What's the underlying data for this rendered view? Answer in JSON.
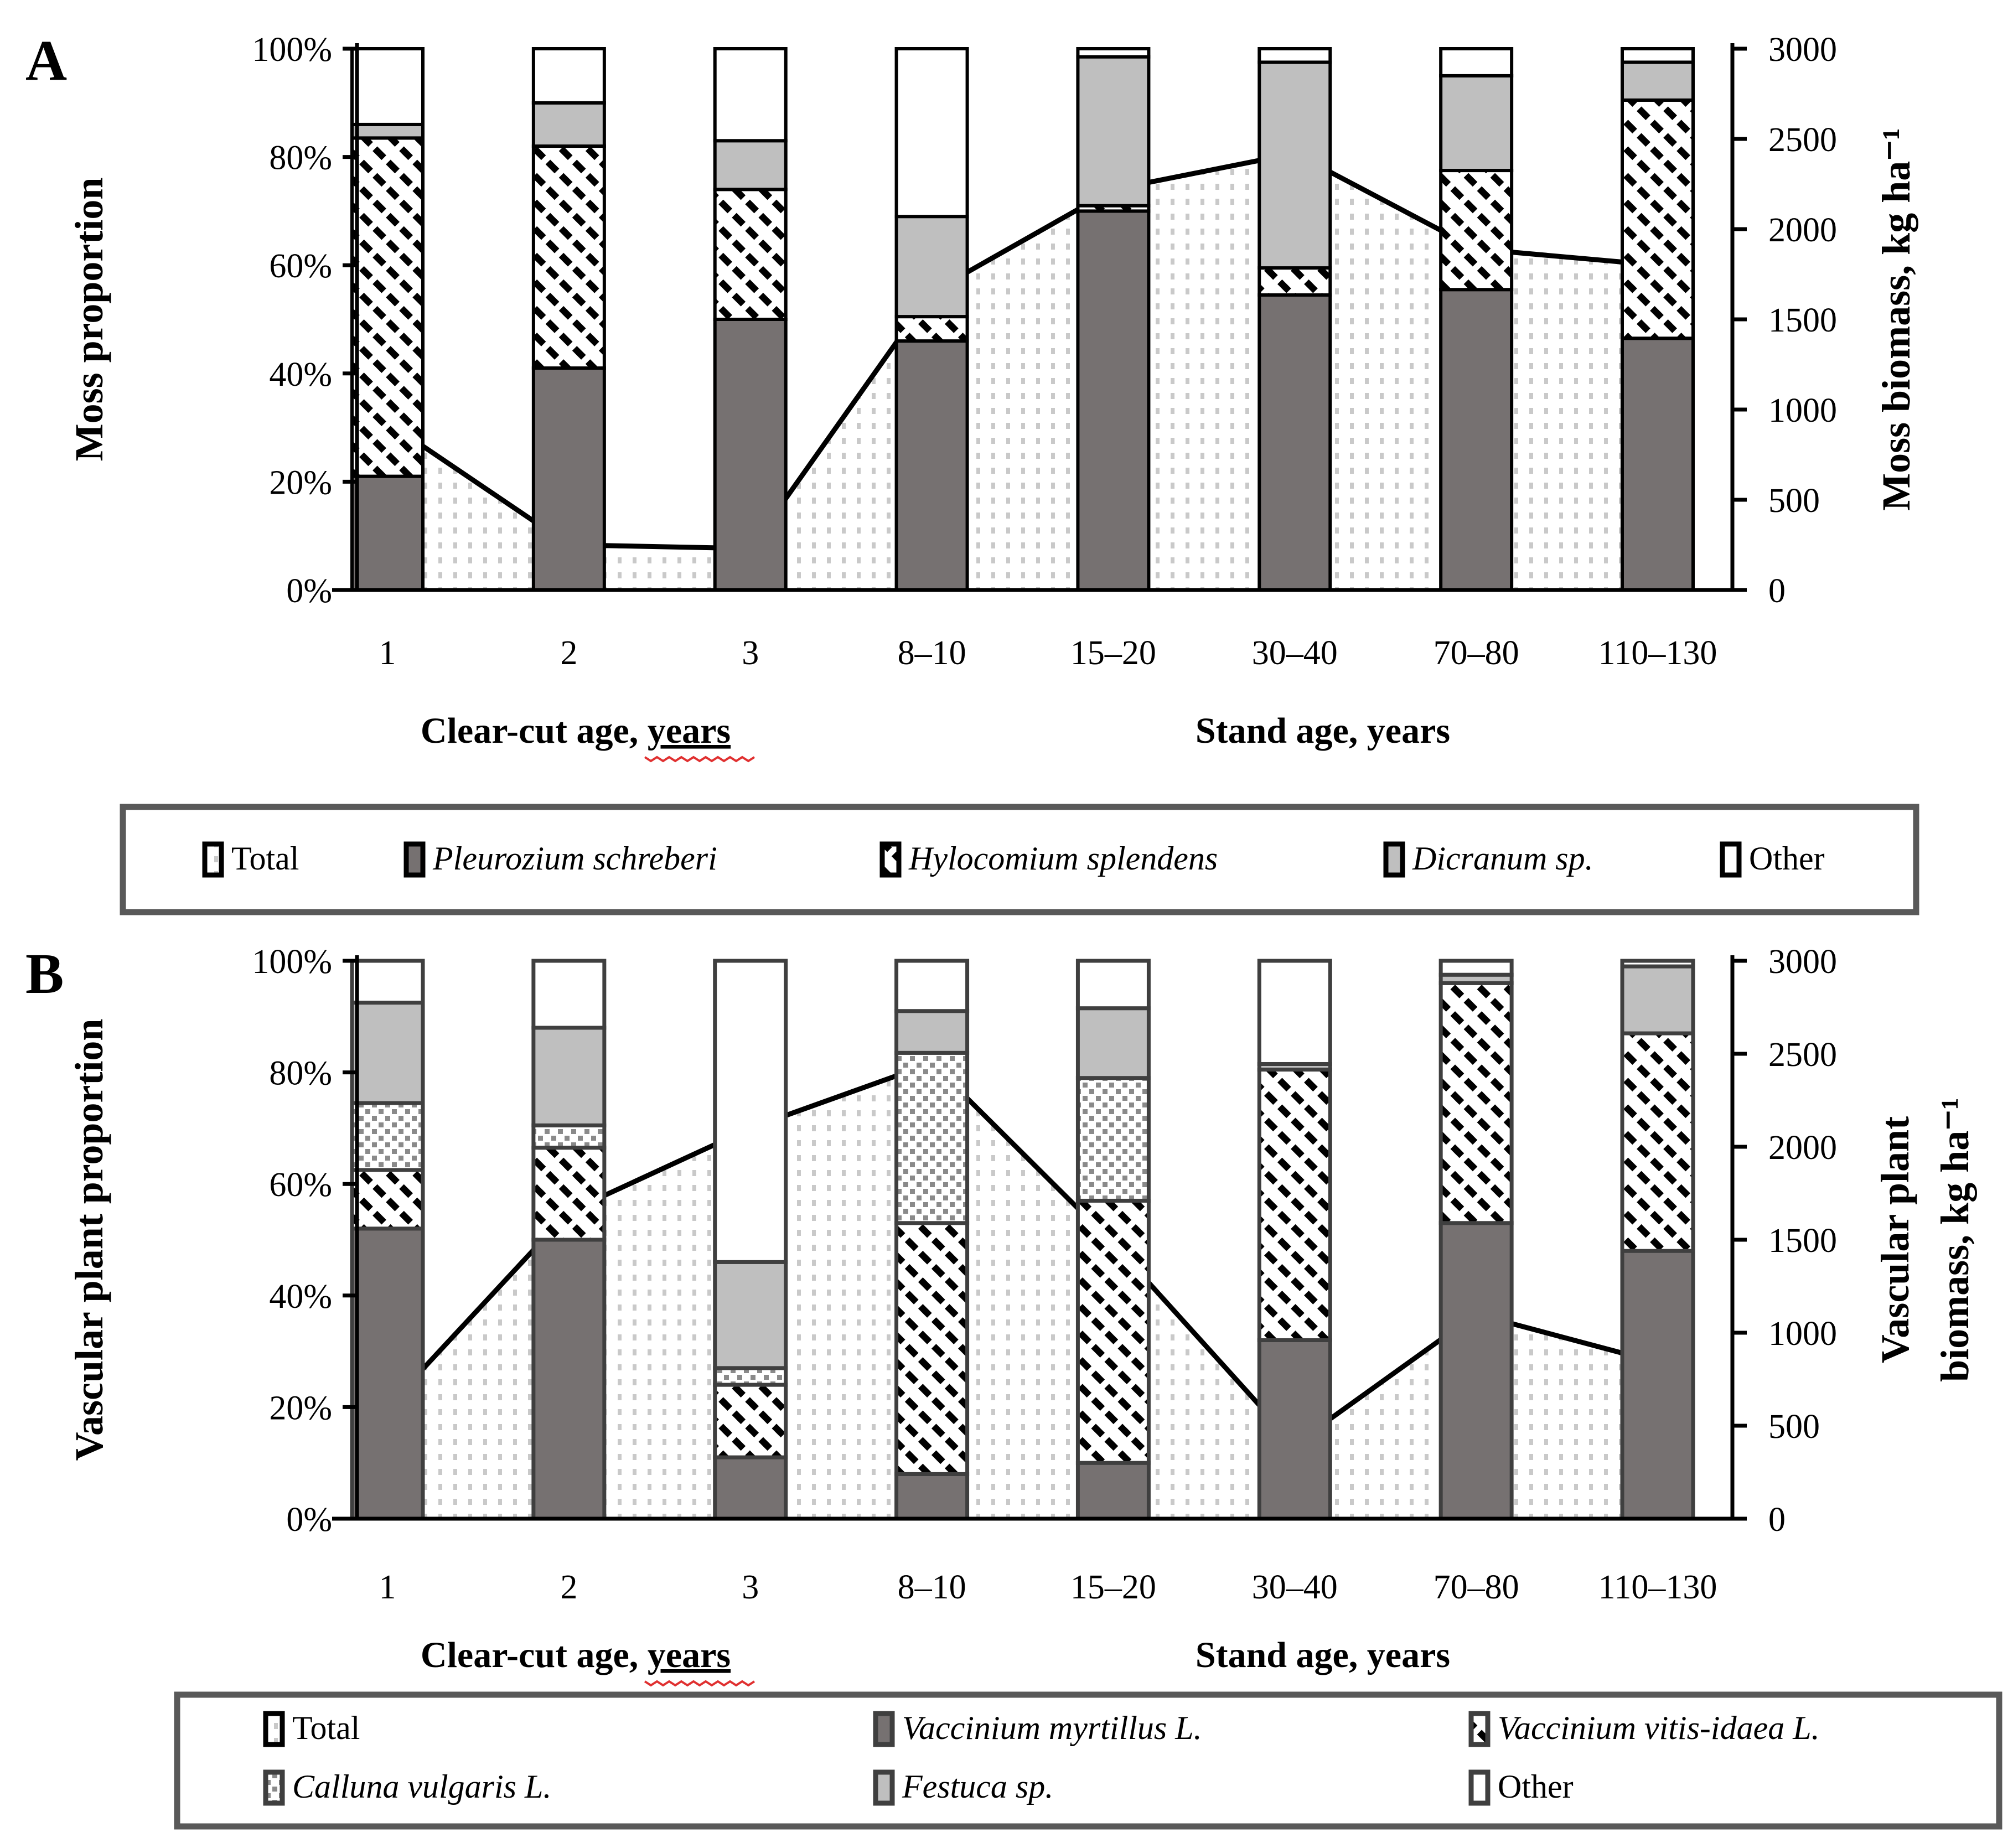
{
  "panel_a_letter": "A",
  "panel_b_letter": "B",
  "colors": {
    "dark_gray_fill": "#767171",
    "light_gray_fill": "#bfbfbf",
    "white_fill": "#ffffff",
    "area_dot_color": "#c9c9c9",
    "calluna_dot_color": "#8a8a8a",
    "bar_border_a": "#000000",
    "bar_border_b": "#3f3f3f",
    "legend_border": "#595959",
    "line_color": "#000000",
    "squiggle_color": "#e03030"
  },
  "chart_data": [
    {
      "panel_label": "A",
      "type": "bar",
      "subtype": "stacked-100%-bars with Total area series on secondary axis",
      "title": "",
      "categories": [
        "1",
        "2",
        "3",
        "8–10",
        "15–20",
        "30–40",
        "70–80",
        "110–130"
      ],
      "x_group_titles": [
        {
          "text": "Clear-cut age, ",
          "underlined_word": "years",
          "has_red_squiggle": true
        },
        {
          "text": "Stand age, years",
          "underlined_word": "",
          "has_red_squiggle": false
        }
      ],
      "y_left": {
        "title": "Moss proportion",
        "tick_labels": [
          "0%",
          "20%",
          "40%",
          "60%",
          "80%",
          "100%"
        ],
        "range": [
          0,
          100
        ],
        "grid": false
      },
      "y_right": {
        "title_lines": [
          "Moss biomass, kg ha⁻¹"
        ],
        "tick_labels": [
          "0",
          "500",
          "1000",
          "1500",
          "2000",
          "2500",
          "3000"
        ],
        "range": [
          0,
          3000
        ]
      },
      "area_series": {
        "name": "Total",
        "fill": "area-dots",
        "values_kg_ha": [
          930,
          250,
          230,
          1650,
          2220,
          2420,
          1890,
          1800
        ]
      },
      "bar_series": [
        {
          "name": "Pleurozium schreberi",
          "italic": true,
          "fill": "darkgray",
          "values_pct": [
            21,
            41,
            50,
            46,
            70,
            54.5,
            55.5,
            46.5
          ]
        },
        {
          "name": "Hylocomium splendens",
          "italic": true,
          "fill": "hatch",
          "values_pct": [
            62.5,
            41,
            24,
            4.5,
            1,
            5,
            22,
            44
          ]
        },
        {
          "name": "Dicranum sp.",
          "italic": true,
          "fill": "lightgray",
          "values_pct": [
            2.5,
            8,
            9,
            18.5,
            27.5,
            38,
            17.5,
            7
          ]
        },
        {
          "name": "Other",
          "italic": false,
          "fill": "white",
          "values_pct": [
            14,
            10,
            17,
            31,
            1.5,
            2.5,
            5,
            2.5
          ]
        }
      ],
      "legend": {
        "rows": 1,
        "items": [
          {
            "label": "Total",
            "italic": false,
            "fill": "area-dots"
          },
          {
            "label": "Pleurozium schreberi",
            "italic": true,
            "fill": "darkgray"
          },
          {
            "label": "Hylocomium splendens",
            "italic": true,
            "fill": "hatch"
          },
          {
            "label": "Dicranum sp.",
            "italic": true,
            "fill": "lightgray"
          },
          {
            "label": "Other",
            "italic": false,
            "fill": "white"
          }
        ]
      }
    },
    {
      "panel_label": "B",
      "type": "bar",
      "subtype": "stacked-100%-bars with Total area series on secondary axis",
      "title": "",
      "categories": [
        "1",
        "2",
        "3",
        "8–10",
        "15–20",
        "30–40",
        "70–80",
        "110–130"
      ],
      "x_group_titles": [
        {
          "text": "Clear-cut age, ",
          "underlined_word": "years",
          "has_red_squiggle": true
        },
        {
          "text": "Stand age, years",
          "underlined_word": "",
          "has_red_squiggle": false
        }
      ],
      "y_left": {
        "title": "Vascular plant proportion",
        "tick_labels": [
          "0%",
          "20%",
          "40%",
          "60%",
          "80%",
          "100%"
        ],
        "range": [
          0,
          100
        ],
        "grid": false
      },
      "y_right": {
        "title_lines": [
          "Vascular plant",
          "biomass, kg ha⁻¹"
        ],
        "tick_labels": [
          "0",
          "500",
          "1000",
          "1500",
          "2000",
          "2500",
          "3000"
        ],
        "range": [
          0,
          3000
        ]
      },
      "area_series": {
        "name": "Total",
        "fill": "area-dots",
        "values_kg_ha": [
          600,
          1650,
          2100,
          2450,
          1480,
          400,
          1100,
          840
        ]
      },
      "bar_series": [
        {
          "name": "Vaccinium myrtillus L.",
          "italic": true,
          "fill": "darkgray",
          "values_pct": [
            52,
            50,
            11,
            8,
            10,
            32,
            53,
            48
          ]
        },
        {
          "name": "Vaccinium vitis-idaea L.",
          "italic": true,
          "fill": "hatch",
          "values_pct": [
            10.5,
            16.5,
            13,
            45,
            47,
            48.5,
            43,
            39
          ]
        },
        {
          "name": "Calluna vulgaris L.",
          "italic": true,
          "fill": "calluna-dots",
          "values_pct": [
            12,
            4,
            3,
            30.5,
            22,
            0,
            0,
            0
          ]
        },
        {
          "name": "Festuca sp.",
          "italic": true,
          "fill": "lightgray",
          "values_pct": [
            18,
            17.5,
            19,
            7.5,
            12.5,
            1,
            1.5,
            12
          ]
        },
        {
          "name": "Other",
          "italic": false,
          "fill": "white",
          "values_pct": [
            7.5,
            12,
            54,
            9,
            8.5,
            18.5,
            2.5,
            1
          ]
        }
      ],
      "legend": {
        "rows": 2,
        "items": [
          {
            "label": "Total",
            "italic": false,
            "fill": "area-dots"
          },
          {
            "label": "Vaccinium myrtillus L.",
            "italic": true,
            "fill": "darkgray"
          },
          {
            "label": "Vaccinium vitis-idaea L.",
            "italic": true,
            "fill": "hatch"
          },
          {
            "label": "Calluna vulgaris L.",
            "italic": true,
            "fill": "calluna-dots"
          },
          {
            "label": "Festuca sp.",
            "italic": true,
            "fill": "lightgray"
          },
          {
            "label": "Other",
            "italic": false,
            "fill": "white"
          }
        ]
      }
    }
  ]
}
